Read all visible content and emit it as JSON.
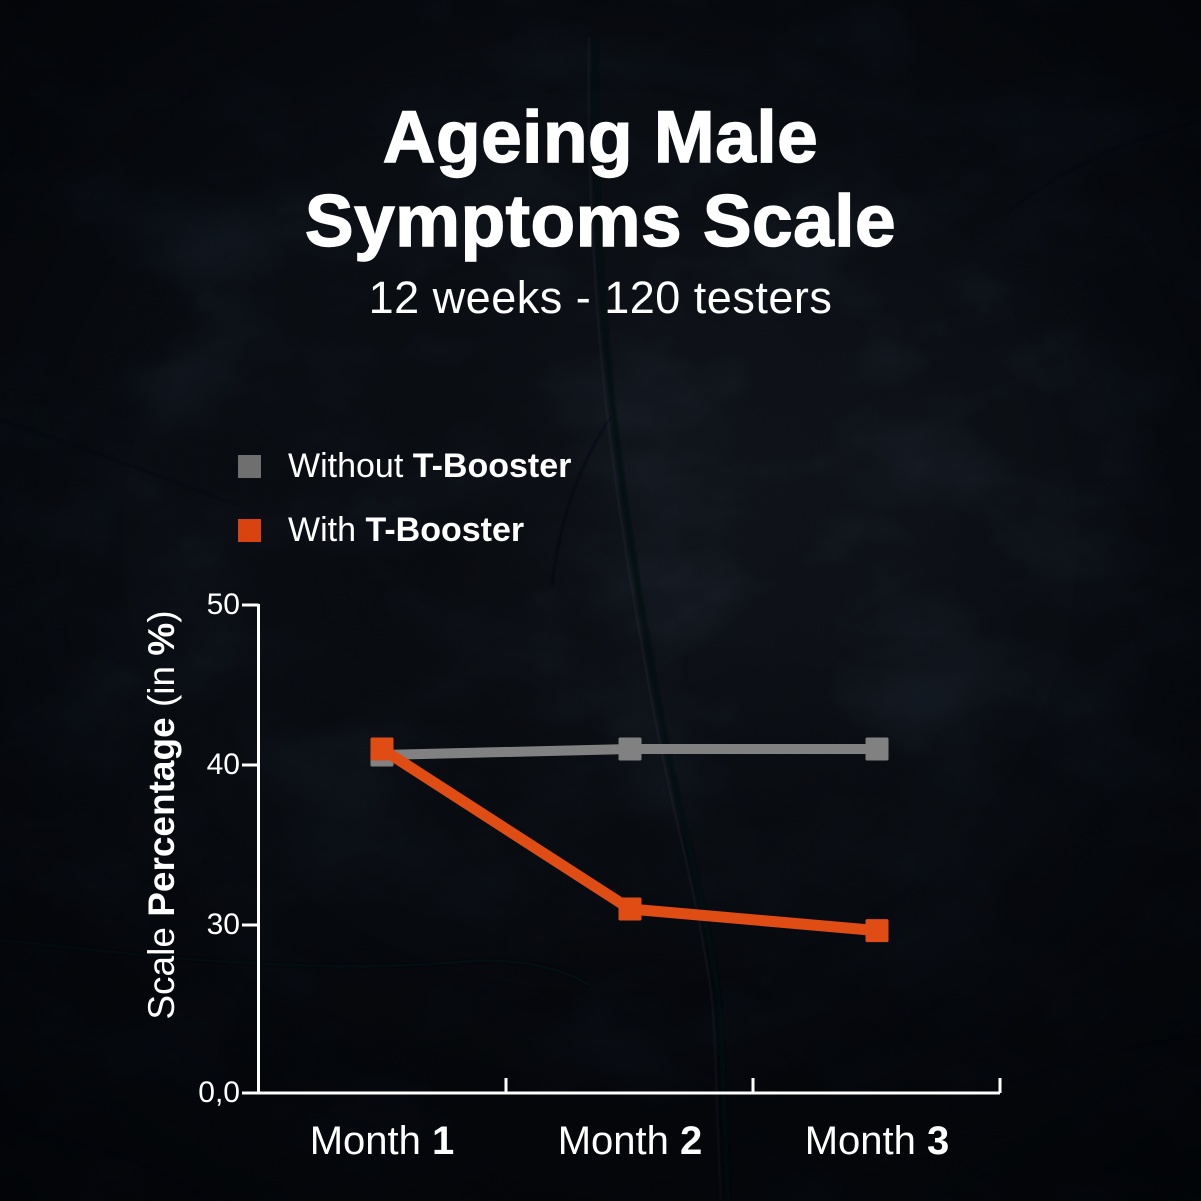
{
  "title": {
    "line1": "Ageing Male",
    "line2": "Symptoms Scale",
    "subtitle": "12 weeks - 120 testers"
  },
  "legend": {
    "items": [
      {
        "prefix": "Without ",
        "bold": "T-Booster",
        "color": "#6f6f6f"
      },
      {
        "prefix": "With ",
        "bold": "T-Booster",
        "color": "#d8430f"
      }
    ]
  },
  "chart_data": {
    "type": "line",
    "categories": [
      "Month 1",
      "Month 2",
      "Month 3"
    ],
    "categories_parts": [
      {
        "prefix": "Month ",
        "number": "1"
      },
      {
        "prefix": "Month ",
        "number": "2"
      },
      {
        "prefix": "Month ",
        "number": "3"
      }
    ],
    "series": [
      {
        "name": "Without T-Booster",
        "color": "#818181",
        "values": [
          41,
          41,
          41
        ]
      },
      {
        "name": "With T-Booster",
        "color": "#df4d15",
        "values": [
          41,
          31,
          29
        ]
      }
    ],
    "ylabel": "Scale Percentage (in %)",
    "ylabel_parts": {
      "p1": "Scale ",
      "p2": "Percentage",
      "p3": " (in ",
      "p4": "%",
      "p5": ")"
    },
    "yticks": [
      {
        "label": "50",
        "value": 50
      },
      {
        "label": "40",
        "value": 40
      },
      {
        "label": "30",
        "value": 30
      },
      {
        "label": "0,0",
        "value": 0
      }
    ],
    "ylim": [
      0,
      50
    ],
    "y_axis_break": true,
    "xlabel": "",
    "grid": false,
    "axis_color": "#ffffff",
    "text_color": "#ffffff",
    "legend_position": "upper-left"
  }
}
